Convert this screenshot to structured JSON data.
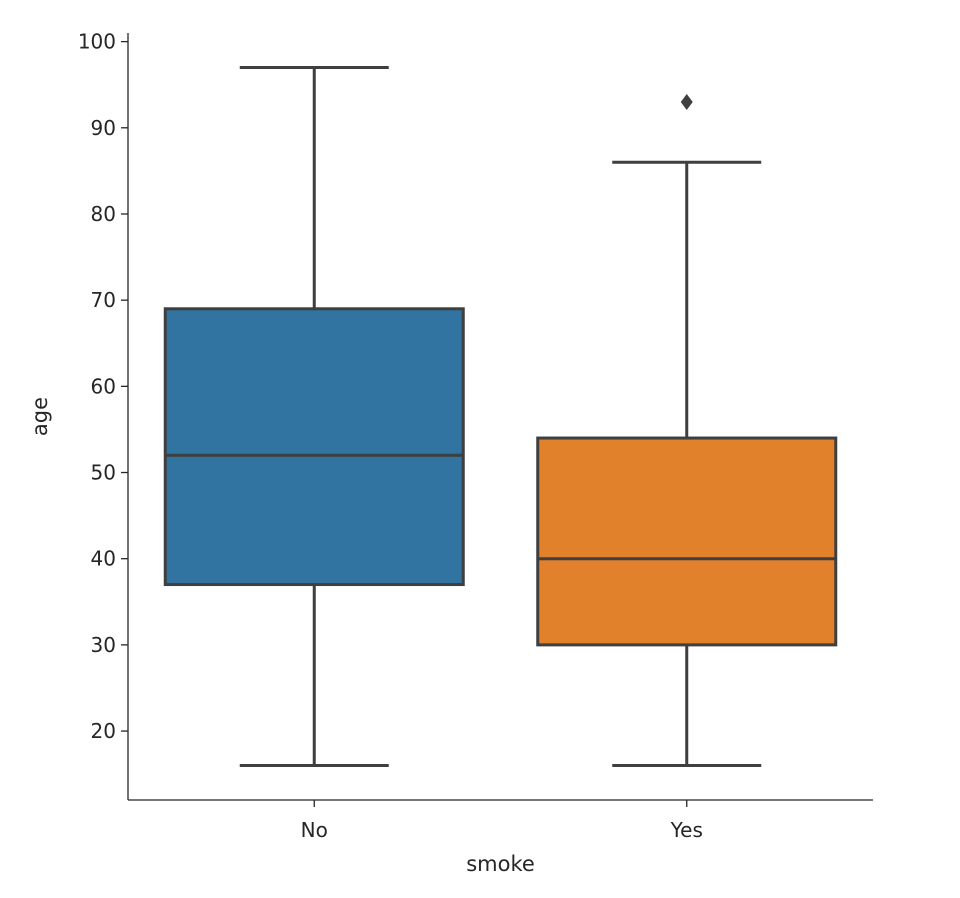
{
  "chart_data": {
    "type": "box",
    "title": "",
    "xlabel": "smoke",
    "ylabel": "age",
    "categories": [
      "No",
      "Yes"
    ],
    "ylim": [
      12,
      101
    ],
    "yticks": [
      20,
      30,
      40,
      50,
      60,
      70,
      80,
      90,
      100
    ],
    "grid": false,
    "legend": "none",
    "boxes": [
      {
        "category": "No",
        "whisker_low": 16,
        "q1": 37,
        "median": 52,
        "q3": 69,
        "whisker_high": 97,
        "outliers": [],
        "color": "#3274a1"
      },
      {
        "category": "Yes",
        "whisker_low": 16,
        "q1": 30,
        "median": 40,
        "q3": 54,
        "whisker_high": 86,
        "outliers": [
          93
        ],
        "color": "#e1812c"
      }
    ]
  }
}
